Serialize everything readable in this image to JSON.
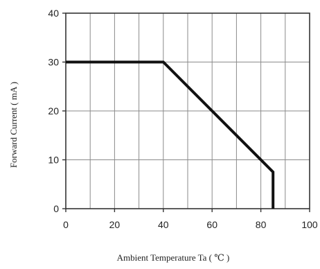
{
  "chart_data": {
    "type": "line",
    "title": "",
    "xlabel": "Ambient Temperature Ta ( ℃ )",
    "ylabel": "Forward Current ( mA )",
    "xlim": [
      0,
      100
    ],
    "ylim": [
      0,
      40
    ],
    "xticks": [
      0,
      20,
      40,
      60,
      80,
      100
    ],
    "yticks": [
      0,
      10,
      20,
      30,
      40
    ],
    "x_grid_step": 10,
    "y_grid_step": 10,
    "grid": true,
    "legend": "none",
    "line_color": "#111111",
    "series": [
      {
        "x": [
          0,
          40,
          85,
          85
        ],
        "y": [
          30,
          30,
          7.5,
          0
        ]
      }
    ]
  }
}
